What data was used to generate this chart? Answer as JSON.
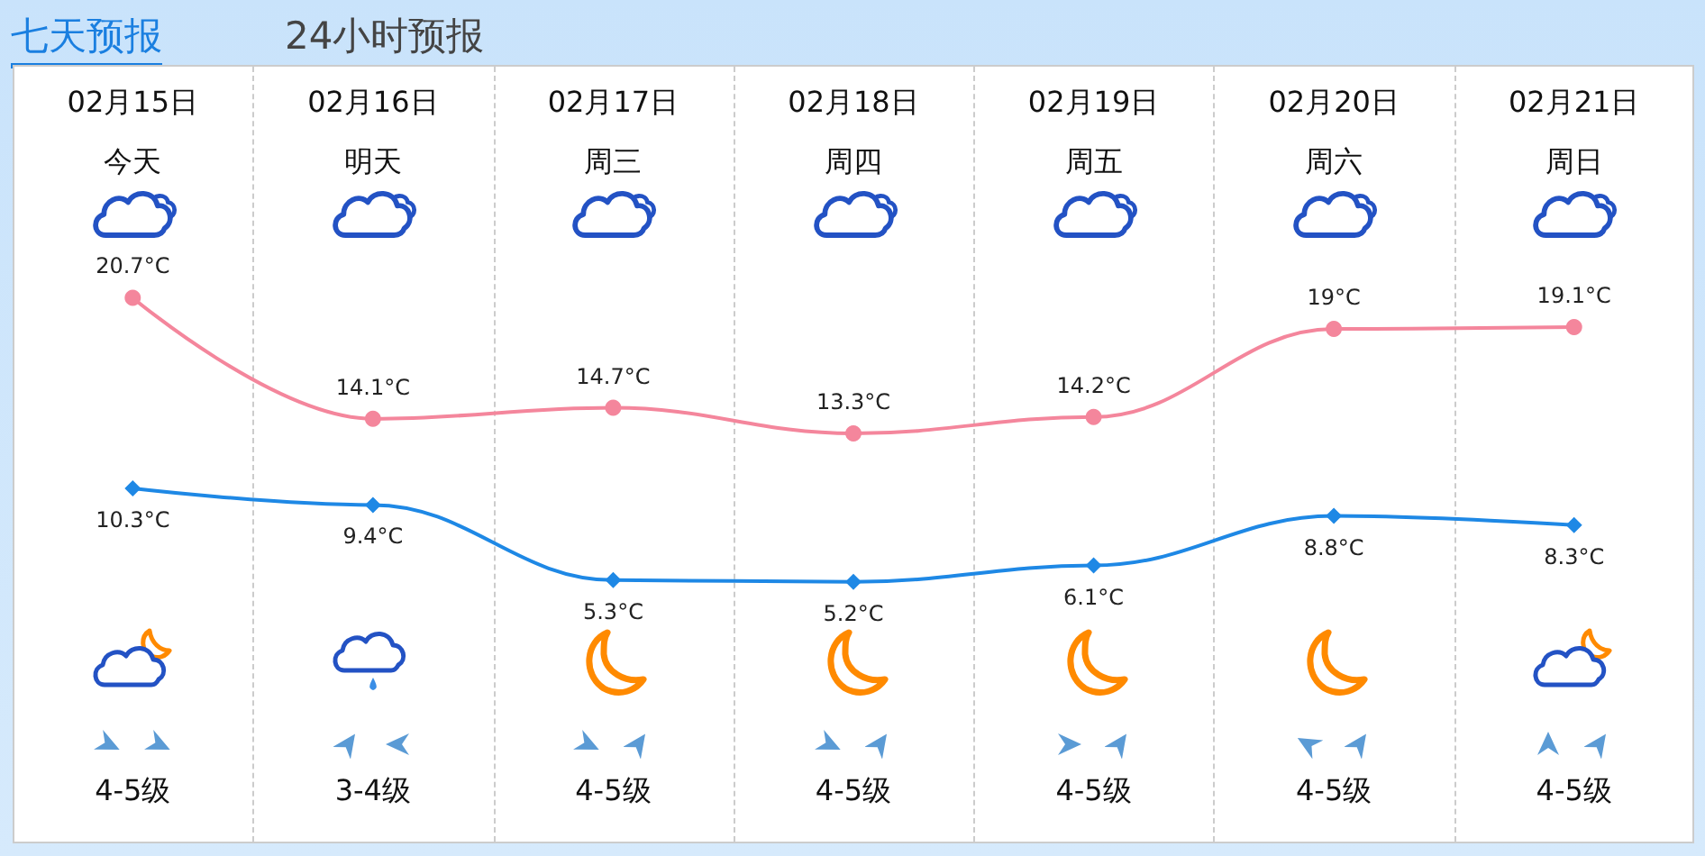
{
  "chart_data": {
    "type": "line",
    "title": "七天预报",
    "subtitle": "24小时预报",
    "categories": [
      "02月15日",
      "02月16日",
      "02月17日",
      "02月18日",
      "02月19日",
      "02月20日",
      "02月21日"
    ],
    "series": [
      {
        "color": "#f4869c",
        "marker": "circle",
        "values": [
          20.7,
          14.1,
          14.7,
          13.3,
          14.2,
          19,
          19.1
        ],
        "value_labels": [
          "20.7°C",
          "14.1°C",
          "14.7°C",
          "13.3°C",
          "14.2°C",
          "19°C",
          "19.1°C"
        ]
      },
      {
        "color": "#1e88e5",
        "marker": "diamond",
        "values": [
          10.3,
          9.4,
          5.3,
          5.2,
          6.1,
          8.8,
          8.3
        ],
        "value_labels": [
          "10.3°C",
          "9.4°C",
          "5.3°C",
          "5.2°C",
          "6.1°C",
          "8.8°C",
          "8.3°C"
        ]
      }
    ],
    "annotations": [
      "今天",
      "明天",
      "周三",
      "周四",
      "周五",
      "周六",
      "周日",
      "4-5级",
      "3-4级",
      "4-5级",
      "4-5级",
      "4-5级",
      "4-5级",
      "4-5级"
    ]
  }
}
